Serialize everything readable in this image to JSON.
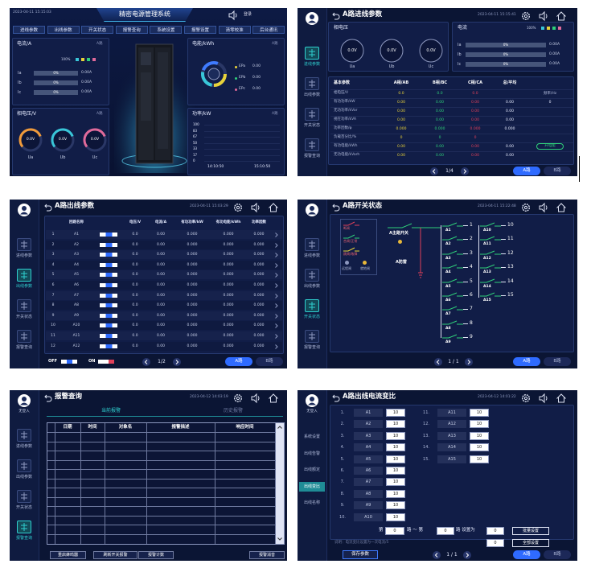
{
  "dashboard": {
    "timestamp": "2023-04-11 15:15:03",
    "title": "精密电源管理系统",
    "login": "登录",
    "tabs": [
      "进线参数",
      "出线参数",
      "开关状态",
      "报警查询",
      "系统设置",
      "报警设置",
      "清零校准",
      "后台通讯"
    ],
    "current": {
      "title": "电流/A",
      "tag": "A路",
      "legend": "100%",
      "rows": [
        {
          "label": "Ia",
          "percent": "0%",
          "value": "0.00A"
        },
        {
          "label": "Ib",
          "percent": "0%",
          "value": "0.00A"
        },
        {
          "label": "Ic",
          "percent": "0%",
          "value": "0.00A"
        }
      ]
    },
    "voltage": {
      "title": "相电压/V",
      "tag": "A路",
      "gauges": [
        {
          "value": "0.0V",
          "label": "Ua"
        },
        {
          "value": "0.0V",
          "label": "Ub"
        },
        {
          "value": "0.0V",
          "label": "Uc"
        }
      ]
    },
    "energy": {
      "title": "电能/kWh",
      "tag": "A路",
      "rows": [
        {
          "label": "EPa",
          "value": "0.00"
        },
        {
          "label": "EPb",
          "value": "0.00"
        },
        {
          "label": "EPc",
          "value": "0.00"
        }
      ]
    },
    "power": {
      "title": "功率/kW",
      "tag": "A路",
      "scale": [
        "100",
        "83",
        "67",
        "50",
        "33",
        "17",
        "0"
      ],
      "times": [
        "14:10:50",
        "15:10:50"
      ]
    }
  },
  "incoming": {
    "title": "A路进线参数",
    "timestamp": "2023-04-11 15:15:41",
    "nav": [
      "进线参数",
      "出线参数",
      "开关状态",
      "报警查询"
    ],
    "voltage": {
      "title": "相电压",
      "gauges": [
        {
          "value": "0.0V",
          "label": "Ua"
        },
        {
          "value": "0.0V",
          "label": "Ub"
        },
        {
          "value": "0.0V",
          "label": "Uc"
        }
      ]
    },
    "current": {
      "title": "电流",
      "legend": "100%",
      "rows": [
        {
          "label": "Ia",
          "percent": "0%",
          "value": "0.00A"
        },
        {
          "label": "Ib",
          "percent": "0%",
          "value": "0.00A"
        },
        {
          "label": "Ic",
          "percent": "0%",
          "value": "0.00A"
        }
      ]
    },
    "table": {
      "header": [
        "基本参数",
        "A相/AB",
        "B相/BC",
        "C相/CA",
        "总/平均"
      ],
      "rows": [
        [
          "相电压/V",
          "0.0",
          "0.0",
          "0.0"
        ],
        [
          "有功功率/kW",
          "0.00",
          "0.00",
          "0.00",
          "0.00"
        ],
        [
          "无功功率/kVar",
          "0.00",
          "0.00",
          "0.00",
          "0.00"
        ],
        [
          "视在功率/kVA",
          "0.00",
          "0.00",
          "0.00",
          "0.00"
        ],
        [
          "功率因数/φ",
          "0.000",
          "0.000",
          "0.000",
          "0.000"
        ],
        [
          "负载百分比/%",
          "0",
          "0",
          "0"
        ],
        [
          "有功电能/kWh",
          "0.00",
          "0.00",
          "0.00",
          "0.00"
        ],
        [
          "无功电能/kVarh",
          "0.00",
          "0.00",
          "0.00",
          "0.00"
        ]
      ],
      "frequency": {
        "label": "频率/Hz",
        "value": "0"
      },
      "energy_button": "开电能"
    },
    "pager": "1/4",
    "buttons": [
      "A路",
      "B路"
    ]
  },
  "outgoing": {
    "title": "A路出线参数",
    "timestamp": "2023-04-11 15:03:29",
    "nav": [
      "进线参数",
      "出线参数",
      "开关状态",
      "报警查询"
    ],
    "header": [
      "回路名称",
      "电压/V",
      "电流/A",
      "有功功率/kW",
      "有功电能/kWh",
      "功率因数"
    ],
    "rows": [
      {
        "index": 1,
        "name": "A1",
        "values": [
          "0.0",
          "0.00",
          "0.000",
          "0.000",
          "0.000"
        ]
      },
      {
        "index": 2,
        "name": "A2",
        "values": [
          "0.0",
          "0.00",
          "0.000",
          "0.000",
          "0.000"
        ]
      },
      {
        "index": 3,
        "name": "A3",
        "values": [
          "0.0",
          "0.00",
          "0.000",
          "0.000",
          "0.000"
        ]
      },
      {
        "index": 4,
        "name": "A4",
        "values": [
          "0.0",
          "0.00",
          "0.000",
          "0.000",
          "0.000"
        ]
      },
      {
        "index": 5,
        "name": "A5",
        "values": [
          "0.0",
          "0.00",
          "0.000",
          "0.000",
          "0.000"
        ]
      },
      {
        "index": 6,
        "name": "A6",
        "values": [
          "0.0",
          "0.00",
          "0.000",
          "0.000",
          "0.000"
        ]
      },
      {
        "index": 7,
        "name": "A7",
        "values": [
          "0.0",
          "0.00",
          "0.000",
          "0.000",
          "0.000"
        ]
      },
      {
        "index": 8,
        "name": "A8",
        "values": [
          "0.0",
          "0.00",
          "0.000",
          "0.000",
          "0.000"
        ]
      },
      {
        "index": 9,
        "name": "A9",
        "values": [
          "0.0",
          "0.00",
          "0.000",
          "0.000",
          "0.000"
        ]
      },
      {
        "index": 10,
        "name": "A10",
        "values": [
          "0.0",
          "0.00",
          "0.000",
          "0.000",
          "0.000"
        ]
      },
      {
        "index": 11,
        "name": "A11",
        "values": [
          "0.0",
          "0.00",
          "0.000",
          "0.000",
          "0.000"
        ]
      },
      {
        "index": 12,
        "name": "A12",
        "values": [
          "0.0",
          "0.00",
          "0.000",
          "0.000",
          "0.000"
        ]
      }
    ],
    "legend": [
      "OFF",
      "ON"
    ],
    "pager": "1/2",
    "buttons": [
      "A路",
      "B路"
    ]
  },
  "switches": {
    "title": "A路开关状态",
    "timestamp": "2023-04-11 15:22:48",
    "nav": [
      "进线参数",
      "出线参数",
      "开关状态",
      "报警查询"
    ],
    "legend": [
      "断闸",
      "合闸/正常",
      "跳闸/故障",
      "远程闸",
      "就地闸"
    ],
    "main": "A主路开关",
    "arrester": "A防雷",
    "outputs": [
      {
        "label": "A1",
        "number": 1
      },
      {
        "label": "A2",
        "number": 2
      },
      {
        "label": "A3",
        "number": 3
      },
      {
        "label": "A4",
        "number": 4
      },
      {
        "label": "A5",
        "number": 5
      },
      {
        "label": "A6",
        "number": 6
      },
      {
        "label": "A7",
        "number": 7
      },
      {
        "label": "A8",
        "number": 8
      },
      {
        "label": "A9",
        "number": 9
      },
      {
        "label": "A10",
        "number": 10
      },
      {
        "label": "A11",
        "number": 11
      },
      {
        "label": "A12",
        "number": 12
      },
      {
        "label": "A13",
        "number": 13
      },
      {
        "label": "A14",
        "number": 14
      },
      {
        "label": "A15",
        "number": 15
      }
    ],
    "pager": "1 / 1",
    "buttons": [
      "A路",
      "B路"
    ]
  },
  "alarms": {
    "title": "报警查询",
    "timestamp": "2023-04-12 14:03:19",
    "user": "无登入",
    "nav": [
      "进线参数",
      "出线参数",
      "开关状态",
      "报警查询"
    ],
    "tabs": [
      "当前报警",
      "历史报警"
    ],
    "columns": [
      "日期",
      "时间",
      "对象名",
      "报警描述",
      "响应时间"
    ],
    "buttons": [
      "重启蜂鸣器",
      "刷新开关报警",
      "报警计数",
      "报警消音"
    ]
  },
  "ratio": {
    "title": "A路出线电流变比",
    "timestamp": "2023-04-12 14:01:22",
    "user": "无登入",
    "nav": [
      "系统设置",
      "出线告警",
      "出线额定",
      "出线变比",
      "出线名称"
    ],
    "rows": [
      {
        "index": "1.",
        "name": "A1",
        "value": 10
      },
      {
        "index": "2.",
        "name": "A2",
        "value": 10
      },
      {
        "index": "3.",
        "name": "A3",
        "value": 10
      },
      {
        "index": "4.",
        "name": "A4",
        "value": 10
      },
      {
        "index": "5.",
        "name": "A5",
        "value": 10
      },
      {
        "index": "6.",
        "name": "A6",
        "value": 10
      },
      {
        "index": "7.",
        "name": "A7",
        "value": 10
      },
      {
        "index": "8.",
        "name": "A8",
        "value": 10
      },
      {
        "index": "9.",
        "name": "A9",
        "value": 10
      },
      {
        "index": "10.",
        "name": "A10",
        "value": 10
      },
      {
        "index": "11.",
        "name": "A11",
        "value": 10
      },
      {
        "index": "12.",
        "name": "A12",
        "value": 10
      },
      {
        "index": "13.",
        "name": "A13",
        "value": 10
      },
      {
        "index": "14.",
        "name": "A14",
        "value": 10
      },
      {
        "index": "15.",
        "name": "A15",
        "value": 10
      }
    ],
    "batch": {
      "prefix": "第",
      "from": 0,
      "middle": "路 ～ 第",
      "to": 0,
      "suffix": "路 设置为",
      "set": 0,
      "button": "批量设置"
    },
    "note": "说明：电流变比设置为一次电流/5",
    "all": {
      "value": 0,
      "button": "全部设置"
    },
    "save": "保存参数",
    "pager": "1 / 1",
    "buttons": [
      "A路",
      "B路"
    ]
  }
}
